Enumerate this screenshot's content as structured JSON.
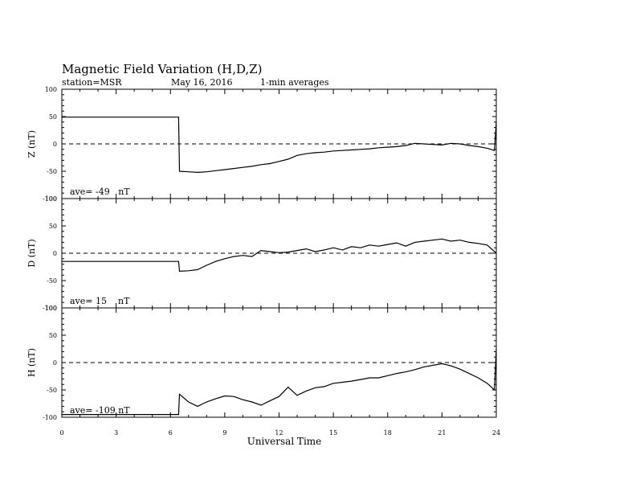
{
  "header": {
    "title": "Magnetic Field Variation (H,D,Z)",
    "station": "station=MSR",
    "date": "May 16, 2016",
    "averaging": "1-min averages"
  },
  "chart_data": [
    {
      "type": "line",
      "ylabel": "Z (nT)",
      "ylim": [
        -100,
        100
      ],
      "yticks": [
        "100",
        "50",
        "0",
        "-50",
        "-100"
      ],
      "xlim": [
        0,
        24
      ],
      "zero_line": "dashed",
      "annotation": "ave= -49   nT",
      "series": [
        {
          "x": [
            0,
            6.45,
            6.5,
            7,
            7.5,
            8,
            8.5,
            9,
            9.5,
            10,
            10.5,
            11,
            11.5,
            12,
            12.5,
            13,
            13.5,
            14,
            14.5,
            15,
            15.5,
            16,
            16.5,
            17,
            17.5,
            18,
            18.5,
            19,
            19.5,
            20,
            20.5,
            21,
            21.5,
            22,
            22.5,
            23,
            23.5,
            23.9,
            24
          ],
          "y": [
            49,
            49,
            -50,
            -51,
            -52,
            -51,
            -49,
            -47,
            -45,
            -43,
            -41,
            -38,
            -36,
            -32,
            -28,
            -21,
            -18,
            -16,
            -15,
            -13,
            -12,
            -11,
            -10,
            -9,
            -7,
            -6,
            -5,
            -3,
            1,
            0,
            -1,
            -2,
            1,
            0,
            -3,
            -5,
            -8,
            -12,
            40
          ]
        }
      ]
    },
    {
      "type": "line",
      "ylabel": "D (nT)",
      "ylim": [
        -100,
        100
      ],
      "yticks": [
        "100",
        "50",
        "0",
        "-50",
        "-100"
      ],
      "xlim": [
        0,
        24
      ],
      "zero_line": "dashed",
      "annotation": "ave= 15    nT",
      "series": [
        {
          "x": [
            0,
            6.45,
            6.5,
            7,
            7.5,
            8,
            8.5,
            9,
            9.5,
            10,
            10.5,
            11,
            11.5,
            12,
            12.5,
            13,
            13.5,
            14,
            14.5,
            15,
            15.5,
            16,
            16.5,
            17,
            17.5,
            18,
            18.5,
            19,
            19.5,
            20,
            20.5,
            21,
            21.5,
            22,
            22.5,
            23,
            23.5,
            24
          ],
          "y": [
            -15,
            -15,
            -33,
            -32,
            -30,
            -22,
            -15,
            -10,
            -6,
            -4,
            -6,
            5,
            3,
            1,
            2,
            5,
            8,
            3,
            6,
            10,
            6,
            12,
            10,
            15,
            13,
            16,
            19,
            13,
            20,
            22,
            24,
            26,
            22,
            24,
            20,
            18,
            15,
            0
          ]
        }
      ]
    },
    {
      "type": "line",
      "ylabel": "H (nT)",
      "ylim": [
        -100,
        100
      ],
      "yticks": [
        "100",
        "50",
        "0",
        "-50",
        "-100"
      ],
      "xlim": [
        0,
        24
      ],
      "zero_line": "dashed",
      "annotation": "ave= -109 nT",
      "series": [
        {
          "x": [
            0,
            6.45,
            6.5,
            7,
            7.5,
            8,
            8.5,
            9,
            9.5,
            10,
            10.5,
            11,
            11.5,
            12,
            12.5,
            13,
            13.5,
            14,
            14.5,
            15,
            15.5,
            16,
            16.5,
            17,
            17.5,
            18,
            18.5,
            19,
            19.5,
            20,
            20.5,
            21,
            21.5,
            22,
            22.5,
            23,
            23.5,
            23.9,
            24
          ],
          "y": [
            -95,
            -95,
            -58,
            -72,
            -80,
            -72,
            -66,
            -61,
            -62,
            -68,
            -72,
            -78,
            -70,
            -62,
            -45,
            -60,
            -52,
            -46,
            -44,
            -38,
            -36,
            -34,
            -31,
            -28,
            -28,
            -24,
            -20,
            -17,
            -13,
            -8,
            -5,
            -2,
            -6,
            -12,
            -20,
            -28,
            -38,
            -50,
            25
          ]
        }
      ]
    }
  ],
  "x_axis": {
    "label": "Universal Time",
    "ticks": [
      "0",
      "3",
      "6",
      "9",
      "12",
      "15",
      "18",
      "21",
      "24"
    ],
    "range": [
      0,
      24
    ]
  }
}
